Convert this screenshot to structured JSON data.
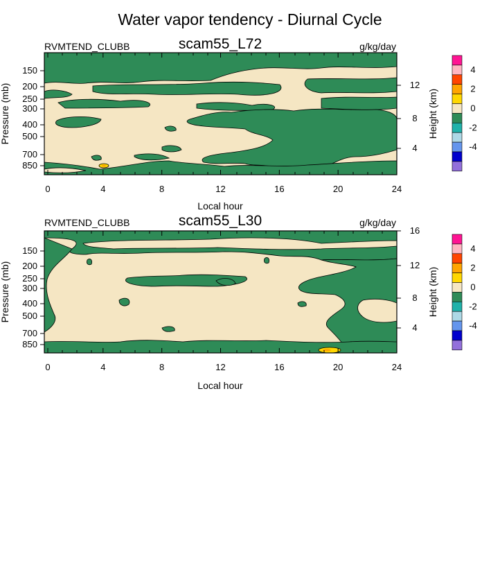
{
  "page_title": "Water vapor tendency - Diurnal Cycle",
  "palette": {
    "beige": "#F5E6C3",
    "green": "#2E8B57",
    "outline": "#000000"
  },
  "chart_data": [
    {
      "type": "contour",
      "title": "scam55_L72",
      "left_label": "RVMTEND_CLUBB",
      "right_label": "g/kg/day",
      "xlabel": "Local hour",
      "ylabel": "Pressure (mb)",
      "ylabel_right": "Height (km)",
      "xlim": [
        0,
        24
      ],
      "x_ticks": [
        "0",
        "4",
        "8",
        "12",
        "16",
        "20",
        "24"
      ],
      "y_scale": "log",
      "y_ticks": [
        "150",
        "200",
        "250",
        "300",
        "400",
        "500",
        "700",
        "850"
      ],
      "height_ticks": [
        "12",
        "8",
        "4"
      ],
      "colorbar": {
        "labels": [
          "4",
          "2",
          "0",
          "-2",
          "-4"
        ],
        "colors": [
          "#FF1493",
          "#FFB6C1",
          "#FF4500",
          "#FFA500",
          "#FFD700",
          "#F5E6C3",
          "#2E8B57",
          "#20B2AA",
          "#ADD8E6",
          "#6495ED",
          "#0000CD",
          "#9370DB"
        ]
      },
      "features": [
        {
          "type": "green",
          "x": [
            0,
            24
          ],
          "p": [
            180,
            100
          ]
        },
        {
          "type": "beige",
          "x": [
            0,
            11
          ],
          "p": [
            155,
            115
          ]
        },
        {
          "type": "beige",
          "x": [
            0,
            5
          ],
          "p": [
            225,
            185
          ]
        },
        {
          "type": "beige",
          "x": [
            0,
            24
          ],
          "p": [
            320,
            240
          ]
        },
        {
          "type": "green",
          "x": [
            1,
            3.5
          ],
          "p": [
            430,
            375
          ]
        },
        {
          "type": "green",
          "x": [
            10,
            24
          ],
          "p": [
            600,
            330
          ]
        },
        {
          "type": "green",
          "x": [
            6,
            10
          ],
          "p": [
            750,
            640
          ]
        },
        {
          "type": "green",
          "x": [
            0,
            24
          ],
          "p": [
            950,
            820
          ]
        }
      ]
    },
    {
      "type": "contour",
      "title": "scam55_L30",
      "left_label": "RVMTEND_CLUBB",
      "right_label": "g/kg/day",
      "xlabel": "Local hour",
      "ylabel": "Pressure (mb)",
      "ylabel_right": "Height (km)",
      "xlim": [
        0,
        24
      ],
      "x_ticks": [
        "0",
        "4",
        "8",
        "12",
        "16",
        "20",
        "24"
      ],
      "y_scale": "log",
      "y_ticks": [
        "150",
        "200",
        "250",
        "300",
        "400",
        "500",
        "700",
        "850"
      ],
      "height_ticks": [
        "16",
        "12",
        "8",
        "4"
      ],
      "colorbar": {
        "labels": [
          "4",
          "2",
          "0",
          "-2",
          "-4"
        ],
        "colors": [
          "#FF1493",
          "#FFB6C1",
          "#FF4500",
          "#FFA500",
          "#FFD700",
          "#F5E6C3",
          "#2E8B57",
          "#20B2AA",
          "#ADD8E6",
          "#6495ED",
          "#0000CD",
          "#9370DB"
        ]
      },
      "features": [
        {
          "type": "green",
          "x": [
            0,
            24
          ],
          "p": [
            200,
            95
          ]
        },
        {
          "type": "beige",
          "x": [
            2.5,
            24
          ],
          "p": [
            175,
            125
          ]
        },
        {
          "type": "green",
          "x": [
            6,
            12
          ],
          "p": [
            290,
            235
          ]
        },
        {
          "type": "green",
          "x": [
            15,
            24
          ],
          "p": [
            700,
            205
          ]
        },
        {
          "type": "green",
          "x": [
            0,
            2
          ],
          "p": [
            450,
            200
          ]
        },
        {
          "type": "green",
          "x": [
            0,
            24
          ],
          "p": [
            950,
            820
          ]
        },
        {
          "type": "yellow",
          "x": [
            18.5,
            20
          ],
          "p": [
            950,
            900
          ]
        }
      ]
    }
  ]
}
